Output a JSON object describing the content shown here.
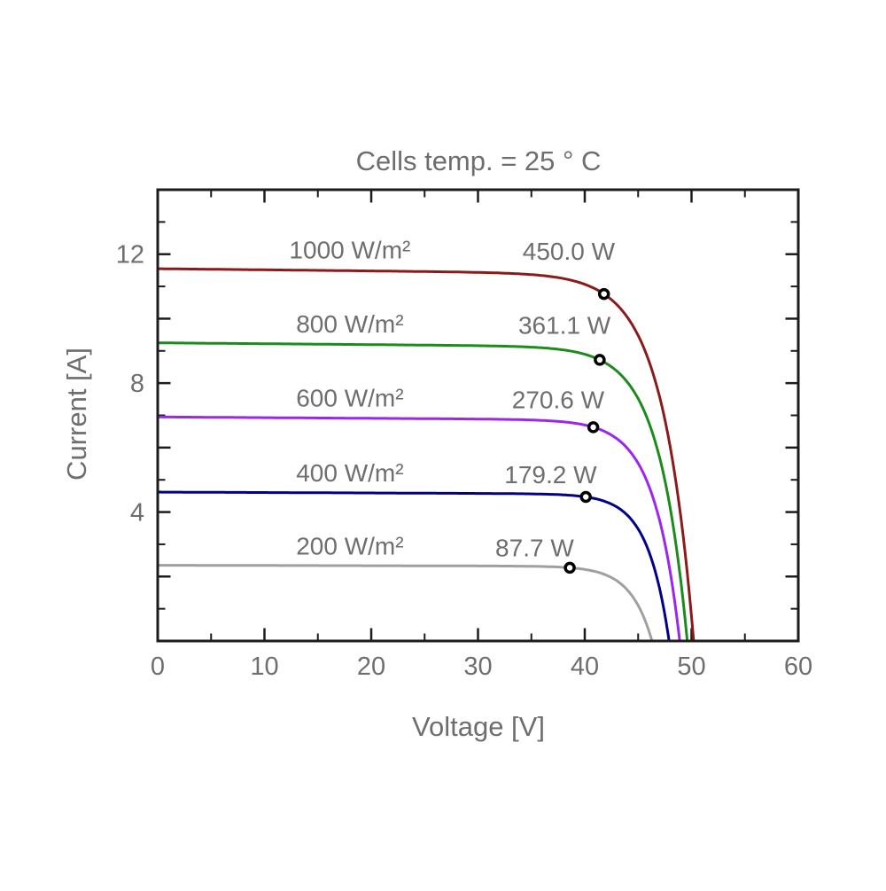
{
  "chart_data": {
    "type": "line",
    "title": "Cells temp. = 25 ° C",
    "xlabel": "Voltage [V]",
    "ylabel": "Current [A]",
    "xlim": [
      0,
      60
    ],
    "ylim": [
      0,
      14
    ],
    "x_major_ticks": [
      0,
      10,
      20,
      30,
      40,
      50,
      60
    ],
    "x_minor_tick_step": 5,
    "y_labeled_ticks": [
      4,
      8,
      12
    ],
    "y_tick_step": 1,
    "y_long_tick_every": 2,
    "grid": false,
    "legend_position": "inline-curve-labels",
    "marker": {
      "style": "open-circle",
      "stroke": "#000000",
      "fill": "#FFFFFF"
    },
    "series": [
      {
        "irradiance_label": "1000 W/m²",
        "irradiance_w_per_m2": 1000,
        "color": "#8B1A1A",
        "isc_a": 11.55,
        "voc_v": 50.2,
        "mpp_v": 41.8,
        "mpp_power_w": 450.0,
        "power_label": "450.0 W"
      },
      {
        "irradiance_label": "800 W/m²",
        "irradiance_w_per_m2": 800,
        "color": "#1B8C1B",
        "isc_a": 9.25,
        "voc_v": 49.6,
        "mpp_v": 41.4,
        "mpp_power_w": 361.1,
        "power_label": "361.1 W"
      },
      {
        "irradiance_label": "600 W/m²",
        "irradiance_w_per_m2": 600,
        "color": "#9B26EE",
        "isc_a": 6.95,
        "voc_v": 48.9,
        "mpp_v": 40.8,
        "mpp_power_w": 270.6,
        "power_label": "270.6 W"
      },
      {
        "irradiance_label": "400 W/m²",
        "irradiance_w_per_m2": 400,
        "color": "#00008B",
        "isc_a": 4.62,
        "voc_v": 47.9,
        "mpp_v": 40.1,
        "mpp_power_w": 179.2,
        "power_label": "179.2 W"
      },
      {
        "irradiance_label": "200 W/m²",
        "irradiance_w_per_m2": 200,
        "color": "#A0A0A0",
        "isc_a": 2.35,
        "voc_v": 46.3,
        "mpp_v": 38.6,
        "mpp_power_w": 87.7,
        "power_label": "87.7 W"
      }
    ]
  },
  "colors": {
    "text": "#6E6E6E",
    "axis": "#1C1C1C",
    "background": "#FFFFFF"
  }
}
